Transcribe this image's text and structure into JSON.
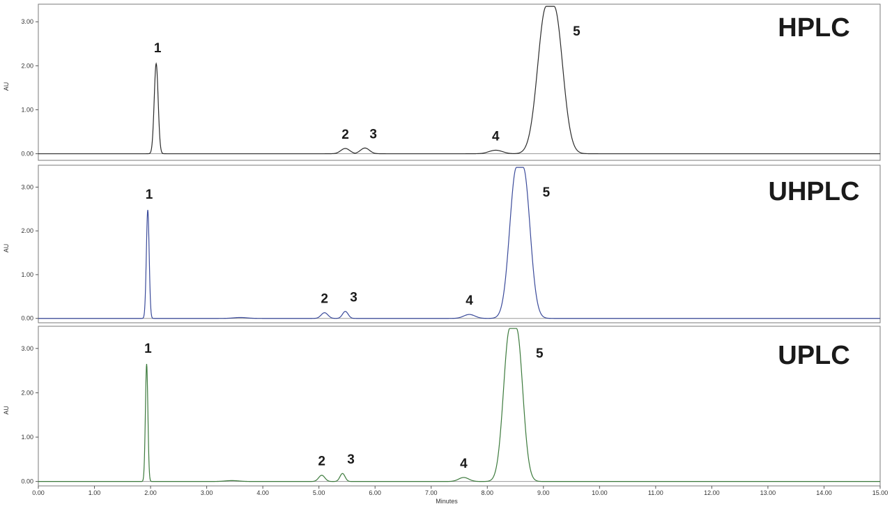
{
  "chart_data": [
    {
      "type": "line",
      "title": "HPLC",
      "ylabel": "AU",
      "ylim": [
        -0.15,
        3.4
      ],
      "xlim": [
        0,
        15
      ],
      "y_ticks": [
        "0.00",
        "1.00",
        "2.00",
        "3.00"
      ],
      "color": "#2b2b2b",
      "peaks": [
        {
          "label": "1",
          "x": 2.1,
          "y": 2.05,
          "width": 0.035
        },
        {
          "label": "2",
          "x": 5.47,
          "y": 0.12,
          "width": 0.08
        },
        {
          "label": "3",
          "x": 5.82,
          "y": 0.13,
          "width": 0.08
        },
        {
          "label": "4",
          "x": 8.15,
          "y": 0.08,
          "width": 0.12
        },
        {
          "label": "5",
          "x": 9.12,
          "y": 3.35,
          "width": 0.15,
          "flat": 0.07
        }
      ]
    },
    {
      "type": "line",
      "title": "UHPLC",
      "ylabel": "AU",
      "ylim": [
        -0.1,
        3.5
      ],
      "xlim": [
        0,
        15
      ],
      "y_ticks": [
        "0.00",
        "1.00",
        "2.00",
        "3.00"
      ],
      "color": "#3a4a9a",
      "peaks": [
        {
          "label": "1",
          "x": 1.95,
          "y": 2.48,
          "width": 0.025
        },
        {
          "label": "",
          "x": 3.6,
          "y": 0.02,
          "width": 0.12
        },
        {
          "label": "2",
          "x": 5.1,
          "y": 0.13,
          "width": 0.06
        },
        {
          "label": "3",
          "x": 5.47,
          "y": 0.16,
          "width": 0.05
        },
        {
          "label": "4",
          "x": 7.68,
          "y": 0.09,
          "width": 0.1
        },
        {
          "label": "5",
          "x": 8.58,
          "y": 3.45,
          "width": 0.12,
          "flat": 0.06
        }
      ]
    },
    {
      "type": "line",
      "title": "UPLC",
      "ylabel": "AU",
      "ylim": [
        -0.1,
        3.5
      ],
      "xlim": [
        0,
        15
      ],
      "y_ticks": [
        "0.00",
        "1.00",
        "2.00",
        "3.00"
      ],
      "color": "#3c7a3c",
      "xlabel": "Minutes",
      "x_ticks": [
        "0.00",
        "1.00",
        "2.00",
        "3.00",
        "4.00",
        "5.00",
        "6.00",
        "7.00",
        "8.00",
        "9.00",
        "10.00",
        "11.00",
        "12.00",
        "13.00",
        "14.00",
        "15.00"
      ],
      "peaks": [
        {
          "label": "1",
          "x": 1.93,
          "y": 2.65,
          "width": 0.022
        },
        {
          "label": "",
          "x": 3.45,
          "y": 0.02,
          "width": 0.12
        },
        {
          "label": "2",
          "x": 5.05,
          "y": 0.14,
          "width": 0.055
        },
        {
          "label": "3",
          "x": 5.42,
          "y": 0.18,
          "width": 0.045
        },
        {
          "label": "4",
          "x": 7.58,
          "y": 0.09,
          "width": 0.09
        },
        {
          "label": "5",
          "x": 8.46,
          "y": 3.45,
          "width": 0.11,
          "flat": 0.06
        }
      ]
    }
  ]
}
